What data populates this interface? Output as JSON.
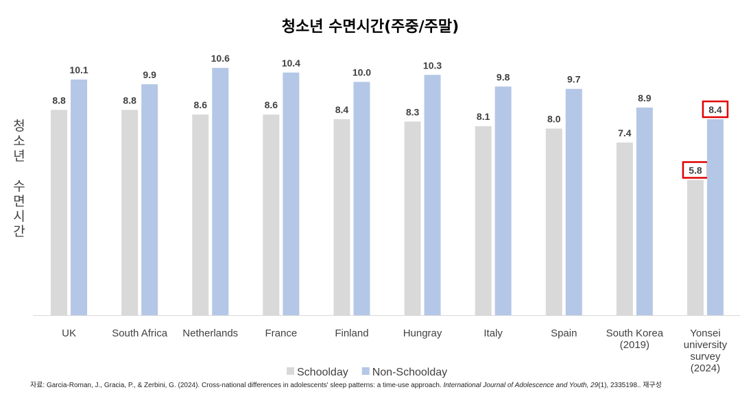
{
  "chart_data": {
    "type": "bar",
    "title": "청소년 수면시간(주중/주말)",
    "ylabel": "청소년 수면시간",
    "xlabel": "",
    "ylim": [
      0,
      13.5
    ],
    "grid": false,
    "legend_position": "bottom",
    "categories": [
      [
        "UK"
      ],
      [
        "South Africa"
      ],
      [
        "Netherlands"
      ],
      [
        "France"
      ],
      [
        "Finland"
      ],
      [
        "Hungray"
      ],
      [
        "Italy"
      ],
      [
        "Spain"
      ],
      [
        "South Korea",
        "(2019)"
      ],
      [
        "Yonsei",
        "university",
        "survey",
        "(2024)"
      ]
    ],
    "series": [
      {
        "name": "Schoolday",
        "color": "#d9d9d9",
        "values": [
          8.8,
          8.8,
          8.6,
          8.6,
          8.4,
          8.3,
          8.1,
          8.0,
          7.4,
          5.8
        ],
        "labels": [
          "8.8",
          "8.8",
          "8.6",
          "8.6",
          "8.4",
          "8.3",
          "8.1",
          "8.0",
          "7.4",
          "5.8"
        ]
      },
      {
        "name": "Non-Schoolday",
        "color": "#b4c7e7",
        "values": [
          10.1,
          9.9,
          10.6,
          10.4,
          10.0,
          10.3,
          9.8,
          9.7,
          8.9,
          8.4
        ],
        "labels": [
          "10.1",
          "9.9",
          "10.6",
          "10.4",
          "10.0",
          "10.3",
          "9.8",
          "9.7",
          "8.9",
          "8.4"
        ]
      }
    ],
    "highlighted_category_index": 9,
    "highlight_color": "#e00000"
  },
  "source": {
    "prefix": "자료: Garcia-Roman, J., Gracia, P., & Zerbini, G. (2024). Cross-national differences in adolescents' sleep patterns: a time-use approach. ",
    "journal": "International Journal of Adolescence and Youth, 29",
    "suffix": "(1), 2335198.. 재구성"
  }
}
